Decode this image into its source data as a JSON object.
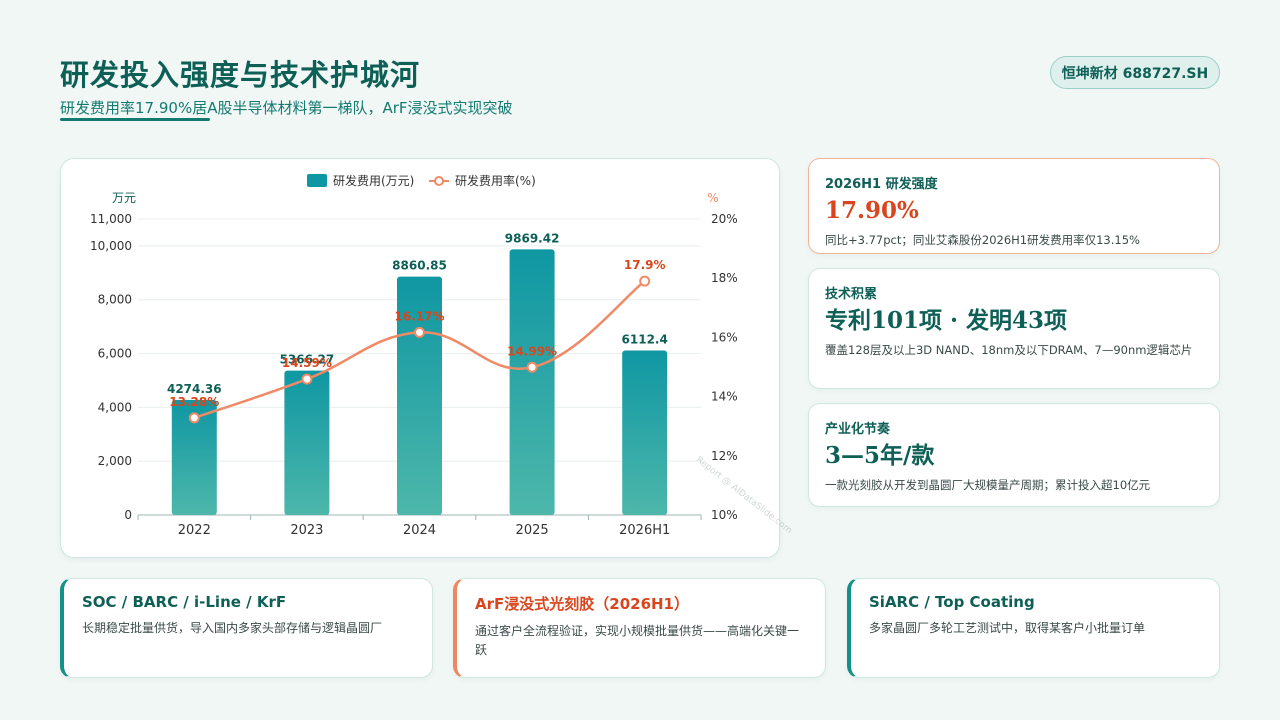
{
  "page": {
    "title": "研发投入强度与技术护城河",
    "subtitle": "研发费用率17.90%居A股半导体材料第一梯队，ArF浸没式实现突破",
    "ticker": "恒坤新材 688727.SH",
    "watermark": "Report @ AIDataSlide.com"
  },
  "stats": [
    {
      "label": "2026H1 研发强度",
      "value": "17.90%",
      "note": "同比+3.77pct；同业艾森股份2026H1研发费用率仅13.15%"
    },
    {
      "label": "技术积累",
      "value": "专利101项 · 发明43项",
      "note": "覆盖128层及以上3D NAND、18nm及以下DRAM、7—90nm逻辑芯片"
    },
    {
      "label": "产业化节奏",
      "value": "3—5年/款",
      "note": "一款光刻胶从开发到晶圆厂大规模量产周期；累计投入超10亿元"
    }
  ],
  "products": [
    {
      "title": "SOC / BARC / i-Line / KrF",
      "text": "长期稳定批量供货，导入国内多家头部存储与逻辑晶圆厂"
    },
    {
      "title": "ArF浸没式光刻胶（2026H1）",
      "text": "通过客户全流程验证，实现小规模批量供货——高端化关键一跃"
    },
    {
      "title": "SiARC / Top Coating",
      "text": "多家晶圆厂多轮工艺测试中，取得某客户小批量订单"
    }
  ],
  "colors": {
    "primary": "#0e5f56",
    "bar_top": "#0f97a3",
    "bar_bottom": "#4db7aa",
    "line": "#f08a66",
    "accent_orange": "#d9451c"
  },
  "chart_data": {
    "type": "bar",
    "categories": [
      "2022",
      "2023",
      "2024",
      "2025",
      "2026H1"
    ],
    "legend_position": "top-center",
    "grid": true,
    "left_axis": {
      "unit": "万元",
      "ylim": [
        0,
        11000
      ],
      "ticks": [
        "0",
        "2,000",
        "4,000",
        "6,000",
        "8,000",
        "10,000",
        "11,000"
      ]
    },
    "right_axis": {
      "unit": "%",
      "ylim": [
        10,
        20
      ],
      "ticks": [
        "10%",
        "12%",
        "14%",
        "16%",
        "18%",
        "20%"
      ]
    },
    "series": [
      {
        "name": "研发费用(万元)",
        "type": "bar",
        "axis": "left",
        "values": [
          4274.36,
          5366.27,
          8860.85,
          9869.42,
          6112.4
        ],
        "labels": [
          "4274.36",
          "5366.27",
          "8860.85",
          "9869.42",
          "6112.4"
        ]
      },
      {
        "name": "研发费用率(%)",
        "type": "line",
        "axis": "right",
        "values": [
          13.28,
          14.59,
          16.17,
          14.99,
          17.9
        ],
        "labels": [
          "13.28%",
          "14.59%",
          "16.17%",
          "14.99%",
          "17.9%"
        ]
      }
    ]
  }
}
